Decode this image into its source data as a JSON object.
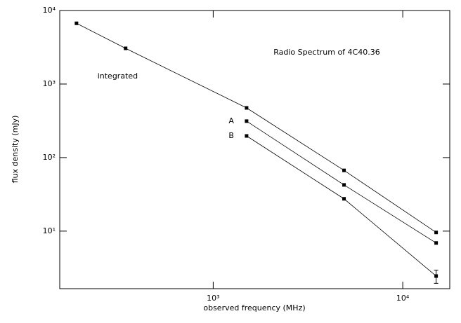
{
  "chart_data": {
    "type": "line",
    "title": "Radio Spectrum of 4C40.36",
    "xlabel": "observed frequency (MHz)",
    "ylabel": "flux density (mJy)",
    "xscale": "log",
    "yscale": "log",
    "xlim": [
      155,
      17700
    ],
    "ylim": [
      1.65,
      10000
    ],
    "xticks": [
      {
        "value": 1000,
        "label": "10³"
      },
      {
        "value": 10000,
        "label": "10⁴"
      }
    ],
    "yticks": [
      {
        "value": 10,
        "label": "10¹"
      },
      {
        "value": 100,
        "label": "10²"
      },
      {
        "value": 1000,
        "label": "10³"
      },
      {
        "value": 10000,
        "label": "10⁴"
      }
    ],
    "series": [
      {
        "name": "integrated",
        "color": "#000000",
        "x": [
          190,
          345,
          1500,
          4900,
          15000
        ],
        "values": [
          6700,
          3060,
          474,
          67,
          9.6
        ]
      },
      {
        "name": "A",
        "color": "#000000",
        "x": [
          1500,
          4900,
          15000
        ],
        "values": [
          313,
          42.5,
          6.9
        ]
      },
      {
        "name": "B",
        "color": "#000000",
        "x": [
          1500,
          4900,
          15000
        ],
        "values": [
          197,
          27.5,
          2.45
        ],
        "errors": [
          null,
          null,
          0.5
        ]
      }
    ]
  }
}
